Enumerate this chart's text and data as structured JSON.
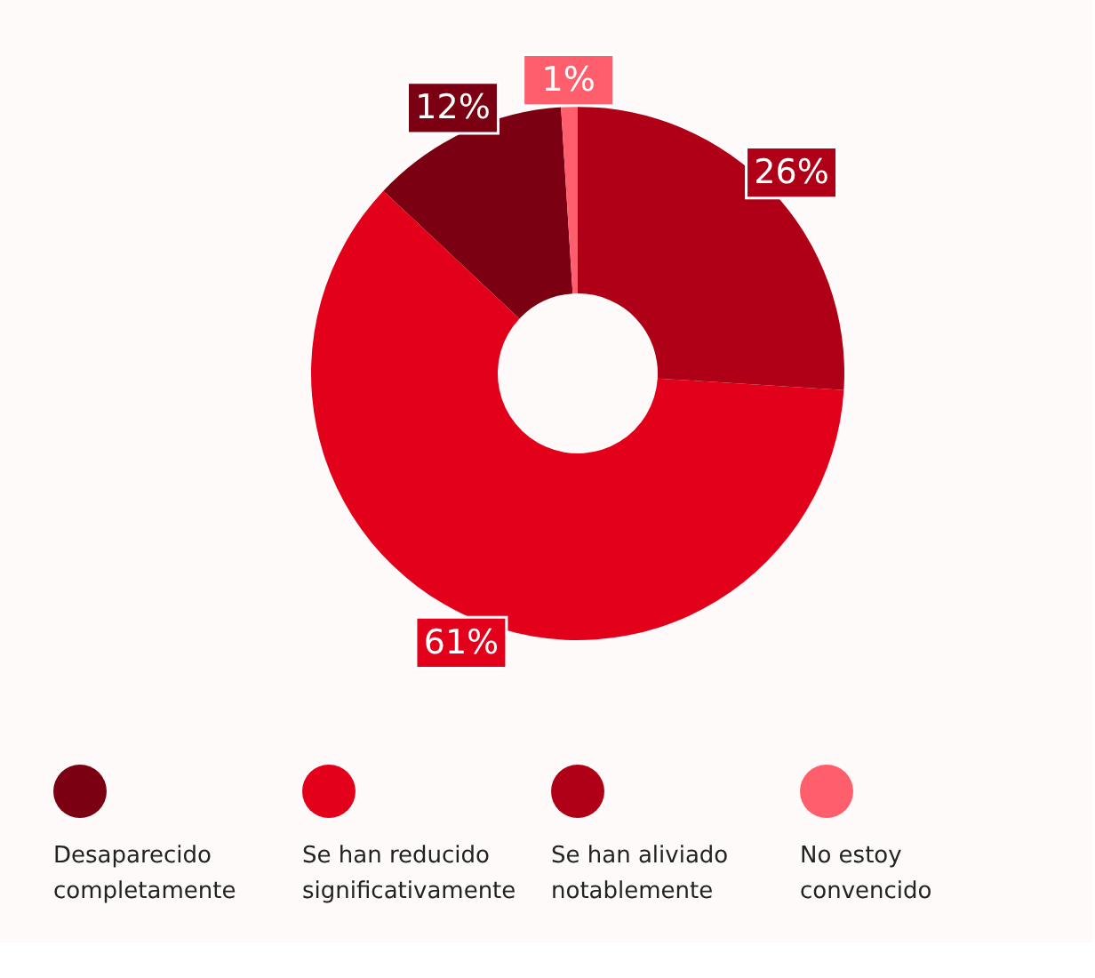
{
  "chart_data": {
    "type": "donut",
    "categories": [
      "Desaparecido completamente",
      "Se han reducido significativamente",
      "Se han aliviado notablemente",
      "No estoy convencido"
    ],
    "values": [
      12,
      61,
      26,
      1
    ],
    "colors": [
      "#7a0012",
      "#e3001b",
      "#b00018",
      "#ff5f6d"
    ],
    "value_labels": [
      "12%",
      "61%",
      "26%",
      "1%"
    ],
    "legend": "bottom"
  }
}
